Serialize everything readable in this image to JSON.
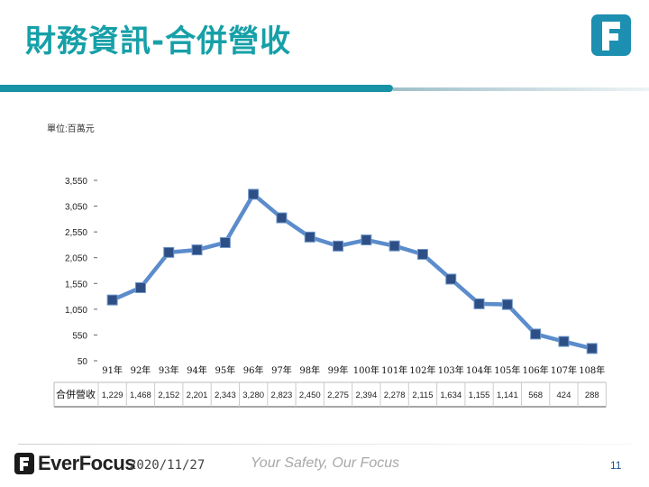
{
  "slide": {
    "title": "財務資訊-合併營收",
    "date": "2020/11/27",
    "slogan": "Your Safety, Our Focus",
    "brand": "EverFocus",
    "page_number": "11"
  },
  "colors": {
    "title": "#16a0a8",
    "title_bar": "#1793a5",
    "logo_bg": "#1d8fb0",
    "line": "#5b8ccc",
    "marker": "#2d4f86"
  },
  "icons": {
    "slide_logo": "everfocus-f-logo-icon",
    "footer_logo": "everfocus-f-logo-icon"
  },
  "chart_data": {
    "type": "line",
    "unit_label": "單位:百萬元",
    "categories": [
      "91年",
      "92年",
      "93年",
      "94年",
      "95年",
      "96年",
      "97年",
      "98年",
      "99年",
      "100年",
      "101年",
      "102年",
      "103年",
      "104年",
      "105年",
      "106年",
      "107年",
      "108年"
    ],
    "series": [
      {
        "name": "合併營收",
        "values": [
          1229,
          1468,
          2152,
          2201,
          2343,
          3280,
          2823,
          2450,
          2275,
          2394,
          2278,
          2115,
          1634,
          1155,
          1141,
          568,
          424,
          288
        ]
      }
    ],
    "yticks": [
      "3,550",
      "3,050",
      "2,550",
      "2,050",
      "1,550",
      "1,050",
      "550",
      "50"
    ],
    "ylim": [
      50,
      3550
    ],
    "table": {
      "row_label": "合併營收",
      "values": [
        "1,229",
        "1,468",
        "2,152",
        "2,201",
        "2,343",
        "3,280",
        "2,823",
        "2,450",
        "2,275",
        "2,394",
        "2,278",
        "2,115",
        "1,634",
        "1,155",
        "1,141",
        "568",
        "424",
        "288"
      ]
    },
    "grid": false,
    "legend": "none"
  }
}
